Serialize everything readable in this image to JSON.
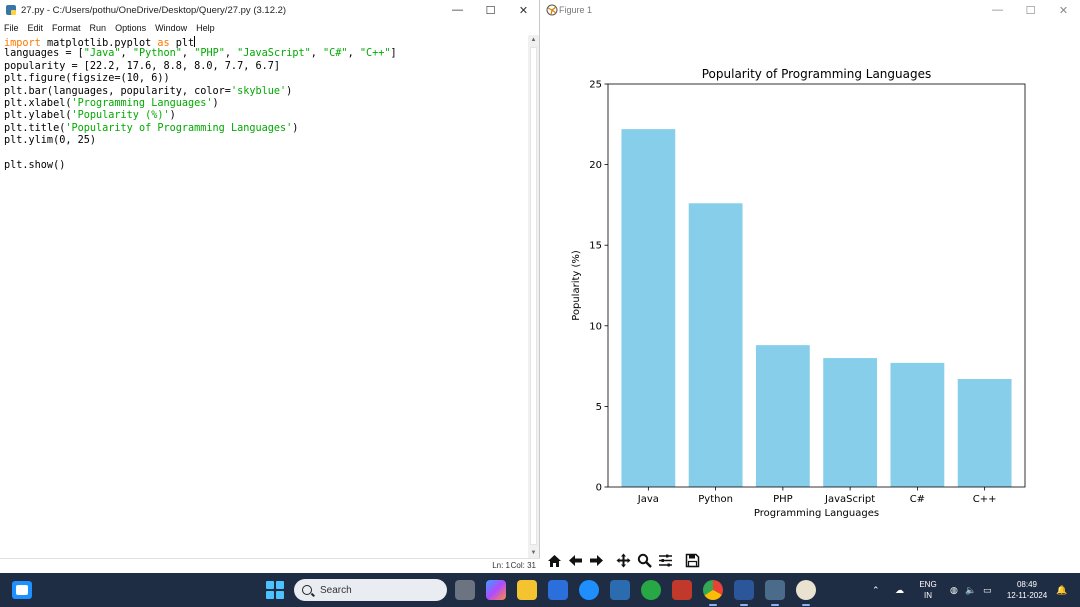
{
  "idle": {
    "title": "27.py - C:/Users/pothu/OneDrive/Desktop/Query/27.py (3.12.2)",
    "menu": [
      "File",
      "Edit",
      "Format",
      "Run",
      "Options",
      "Window",
      "Help"
    ],
    "status_line": "Ln: 1",
    "status_col": "Col: 31",
    "code_lines": [
      "import matplotlib.pyplot as plt",
      "languages = [\"Java\", \"Python\", \"PHP\", \"JavaScript\", \"C#\", \"C++\"]",
      "popularity = [22.2, 17.6, 8.8, 8.0, 7.7, 6.7]",
      "plt.figure(figsize=(10, 6))",
      "plt.bar(languages, popularity, color='skyblue')",
      "plt.xlabel('Programming Languages')",
      "plt.ylabel('Popularity (%)')",
      "plt.title('Popularity of Programming Languages')",
      "plt.ylim(0, 25)",
      "",
      "plt.show()"
    ]
  },
  "figure": {
    "title": "Figure 1",
    "toolbar": [
      "home-icon",
      "back-icon",
      "forward-icon",
      "pan-icon",
      "zoom-icon",
      "configure-icon",
      "save-icon"
    ]
  },
  "chart_data": {
    "type": "bar",
    "title": "Popularity of Programming Languages",
    "xlabel": "Programming Languages",
    "ylabel": "Popularity (%)",
    "categories": [
      "Java",
      "Python",
      "PHP",
      "JavaScript",
      "C#",
      "C++"
    ],
    "values": [
      22.2,
      17.6,
      8.8,
      8.0,
      7.7,
      6.7
    ],
    "ylim": [
      0,
      25
    ],
    "yticks": [
      0,
      5,
      10,
      15,
      20,
      25
    ],
    "color": "#87ceeb",
    "grid": false
  },
  "taskbar": {
    "search_label": "Search",
    "lang_top": "ENG",
    "lang_bottom": "IN",
    "time": "08:49",
    "date": "12-11-2024"
  },
  "colors": {
    "keyword": "#ff7700",
    "string": "#00aa00",
    "taskbar": "#1f2d44",
    "bar": "#87ceeb"
  }
}
